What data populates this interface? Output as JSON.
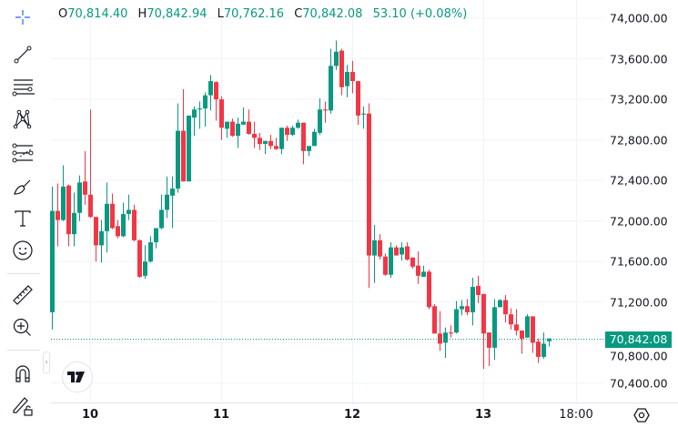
{
  "legend": {
    "open_label": "O",
    "open": "70,814.40",
    "high_label": "H",
    "high": "70,842.94",
    "low_label": "L",
    "low": "70,762.16",
    "close_label": "C",
    "close": "70,842.08",
    "change": "53.10 (+0.08%)"
  },
  "toolbar": {
    "items": [
      {
        "icon": "crosshair-icon"
      },
      {
        "icon": "trend-line-icon"
      },
      {
        "icon": "horizontal-lines-icon"
      },
      {
        "icon": "pattern-icon"
      },
      {
        "icon": "fib-retracement-icon"
      },
      {
        "icon": "brush-icon"
      },
      {
        "icon": "text-icon"
      },
      {
        "icon": "emoji-icon"
      },
      {
        "icon": "ruler-icon"
      },
      {
        "icon": "zoom-in-icon"
      },
      {
        "icon": "magnet-icon"
      },
      {
        "icon": "lock-drawings-icon"
      }
    ]
  },
  "colors": {
    "up": "#089981",
    "down": "#f23645",
    "text": "#131722",
    "grid": "#f0f3fa",
    "accent": "#2962ff"
  },
  "chart_data": {
    "type": "candlestick",
    "ylim": [
      70210,
      74180
    ],
    "y_ticks": [
      "74,000.00",
      "73,600.00",
      "73,200.00",
      "72,800.00",
      "72,400.00",
      "72,000.00",
      "71,600.00",
      "71,200.00",
      "70,800.00",
      "70,400.00"
    ],
    "y_tick_values": [
      74000,
      73600,
      73200,
      72800,
      72400,
      72000,
      71600,
      71200,
      70800,
      70400
    ],
    "x_ticks": [
      {
        "label": "10",
        "index": 7,
        "bold": true
      },
      {
        "label": "11",
        "index": 31,
        "bold": true
      },
      {
        "label": "12",
        "index": 55,
        "bold": true
      },
      {
        "label": "13",
        "index": 79,
        "bold": true
      },
      {
        "label": "18:00",
        "index": 96,
        "bold": false
      }
    ],
    "last_price": "70,842.08",
    "last_price_value": 70842.08,
    "grid": true,
    "ohlc": [
      [
        71100,
        72340,
        70930,
        72100
      ],
      [
        72100,
        72370,
        71750,
        72010
      ],
      [
        72010,
        72550,
        72000,
        72340
      ],
      [
        72350,
        72360,
        71750,
        71870
      ],
      [
        71870,
        72280,
        71750,
        72080
      ],
      [
        72080,
        72450,
        72000,
        72380
      ],
      [
        72390,
        72690,
        72160,
        72260
      ],
      [
        72260,
        73100,
        72030,
        72040
      ],
      [
        72040,
        72040,
        71600,
        71760
      ],
      [
        71760,
        72010,
        71590,
        71900
      ],
      [
        71900,
        72380,
        71690,
        72170
      ],
      [
        72170,
        72270,
        71920,
        71930
      ],
      [
        71950,
        72010,
        71830,
        71850
      ],
      [
        71850,
        72180,
        71840,
        72070
      ],
      [
        72070,
        72260,
        72010,
        72110
      ],
      [
        72110,
        72160,
        71800,
        71810
      ],
      [
        71810,
        71820,
        71440,
        71450
      ],
      [
        71460,
        71760,
        71430,
        71600
      ],
      [
        71600,
        71850,
        71590,
        71790
      ],
      [
        71790,
        71930,
        71730,
        71930
      ],
      [
        71930,
        72260,
        71920,
        72110
      ],
      [
        72110,
        72440,
        72030,
        72260
      ],
      [
        72250,
        72440,
        71930,
        72320
      ],
      [
        72320,
        73160,
        72280,
        72890
      ],
      [
        72890,
        73300,
        72390,
        72390
      ],
      [
        72390,
        73040,
        72390,
        73040
      ],
      [
        73020,
        73130,
        72840,
        73100
      ],
      [
        73100,
        73180,
        72910,
        73110
      ],
      [
        73110,
        73270,
        72930,
        73240
      ],
      [
        73240,
        73440,
        73090,
        73380
      ],
      [
        73370,
        73380,
        72990,
        73200
      ],
      [
        73200,
        73230,
        72800,
        72920
      ],
      [
        72910,
        72980,
        72820,
        72980
      ],
      [
        72980,
        73010,
        72830,
        72840
      ],
      [
        72840,
        73020,
        72720,
        72960
      ],
      [
        72950,
        73120,
        72950,
        72980
      ],
      [
        72980,
        73100,
        72850,
        72860
      ],
      [
        72860,
        72980,
        72720,
        72820
      ],
      [
        72820,
        72870,
        72700,
        72760
      ],
      [
        72760,
        72790,
        72660,
        72790
      ],
      [
        72790,
        72850,
        72710,
        72740
      ],
      [
        72740,
        72820,
        72700,
        72710
      ],
      [
        72710,
        72920,
        72660,
        72920
      ],
      [
        72920,
        72940,
        72790,
        72850
      ],
      [
        72850,
        72940,
        72840,
        72920
      ],
      [
        72920,
        73000,
        72910,
        72970
      ],
      [
        72970,
        72970,
        72560,
        72690
      ],
      [
        72690,
        72740,
        72640,
        72740
      ],
      [
        72740,
        72910,
        72740,
        72880
      ],
      [
        72870,
        73210,
        72850,
        73100
      ],
      [
        73100,
        73180,
        72970,
        73090
      ],
      [
        73090,
        73700,
        73060,
        73530
      ],
      [
        73530,
        73780,
        73490,
        73670
      ],
      [
        73680,
        73700,
        73240,
        73320
      ],
      [
        73330,
        73540,
        73220,
        73470
      ],
      [
        73470,
        73580,
        73260,
        73380
      ],
      [
        73380,
        73380,
        72950,
        73040
      ],
      [
        73050,
        73130,
        72910,
        73060
      ],
      [
        73060,
        73160,
        71340,
        71660
      ],
      [
        71660,
        71960,
        71390,
        71810
      ],
      [
        71810,
        71870,
        71620,
        71650
      ],
      [
        71650,
        71680,
        71460,
        71470
      ],
      [
        71470,
        71790,
        71440,
        71740
      ],
      [
        71740,
        71760,
        71660,
        71660
      ],
      [
        71670,
        71790,
        71610,
        71740
      ],
      [
        71750,
        71790,
        71610,
        71620
      ],
      [
        71640,
        71640,
        71530,
        71550
      ],
      [
        71560,
        71700,
        71380,
        71460
      ],
      [
        71450,
        71560,
        71450,
        71500
      ],
      [
        71500,
        71520,
        71130,
        71150
      ],
      [
        71160,
        71180,
        70890,
        70890
      ],
      [
        70890,
        71110,
        70720,
        70790
      ],
      [
        70800,
        70950,
        70650,
        70900
      ],
      [
        70900,
        70970,
        70850,
        70890
      ],
      [
        70900,
        71210,
        70890,
        71130
      ],
      [
        71130,
        71220,
        71070,
        71160
      ],
      [
        71160,
        71230,
        71070,
        71100
      ],
      [
        71100,
        71440,
        70970,
        71350
      ],
      [
        71360,
        71460,
        71190,
        71270
      ],
      [
        71280,
        71280,
        70540,
        70890
      ],
      [
        70900,
        70900,
        70570,
        70750
      ],
      [
        70750,
        71230,
        70630,
        71150
      ],
      [
        71150,
        71230,
        71150,
        71220
      ],
      [
        71220,
        71270,
        71000,
        71080
      ],
      [
        71080,
        71140,
        70930,
        70980
      ],
      [
        70980,
        71130,
        70870,
        70920
      ],
      [
        70920,
        70920,
        70690,
        70840
      ],
      [
        70850,
        71080,
        70850,
        71060
      ],
      [
        71060,
        71060,
        70700,
        70800
      ],
      [
        70810,
        70840,
        70600,
        70660
      ],
      [
        70660,
        70900,
        70640,
        70790
      ],
      [
        70814.4,
        70842.94,
        70762.16,
        70842.08
      ]
    ]
  }
}
